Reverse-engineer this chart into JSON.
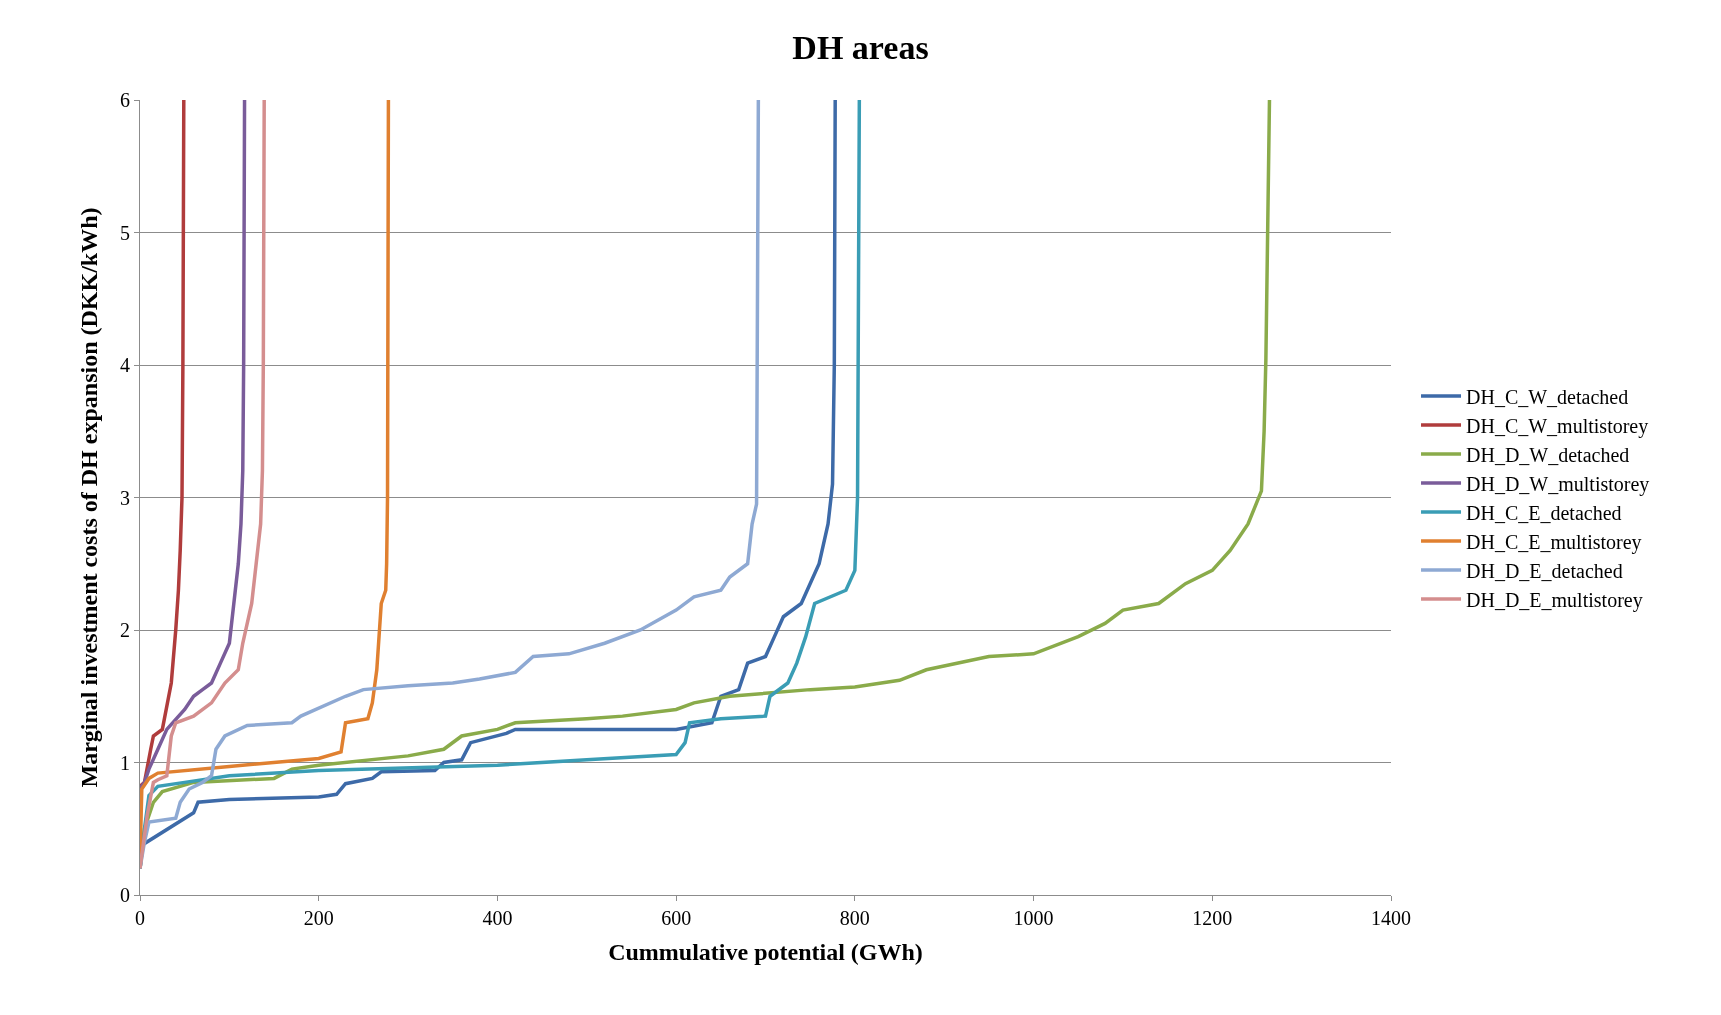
{
  "chart_data": {
    "type": "line",
    "title": "DH areas",
    "xlabel": "Cummulative potential (GWh)",
    "ylabel": "Marginal investment costs of DH expansion (DKK/kWh)",
    "xlim": [
      0,
      1400
    ],
    "xticks": [
      0,
      200,
      400,
      600,
      800,
      1000,
      1200,
      1400
    ],
    "ylim": [
      0,
      6
    ],
    "yticks": [
      0,
      1,
      2,
      3,
      4,
      5,
      6
    ],
    "grid": "y",
    "legend": "right",
    "marker": "none",
    "line_style": "solid",
    "series": [
      {
        "name": "DH_C_W_detached",
        "color": "#3d6aa8",
        "x": [
          0,
          3,
          60,
          65,
          100,
          200,
          220,
          230,
          260,
          270,
          330,
          340,
          360,
          370,
          410,
          420,
          600,
          640,
          650,
          670,
          680,
          700,
          710,
          720,
          740,
          760,
          770,
          775,
          777,
          778
        ],
        "values": [
          0.2,
          0.38,
          0.62,
          0.7,
          0.72,
          0.74,
          0.76,
          0.84,
          0.88,
          0.93,
          0.94,
          1.0,
          1.02,
          1.15,
          1.22,
          1.25,
          1.25,
          1.3,
          1.5,
          1.55,
          1.75,
          1.8,
          1.95,
          2.1,
          2.2,
          2.5,
          2.8,
          3.1,
          4,
          6
        ]
      },
      {
        "name": "DH_C_W_multistorey",
        "color": "#b03c3c",
        "x": [
          0,
          5,
          12,
          15,
          25,
          35,
          40,
          43,
          45,
          47,
          48,
          49
        ],
        "values": [
          0.82,
          0.85,
          1.1,
          1.2,
          1.25,
          1.6,
          2.0,
          2.3,
          2.6,
          3.0,
          4,
          6
        ]
      },
      {
        "name": "DH_D_W_detached",
        "color": "#8aab4a",
        "x": [
          0,
          5,
          15,
          25,
          60,
          150,
          170,
          200,
          300,
          340,
          360,
          400,
          420,
          500,
          540,
          600,
          620,
          660,
          750,
          800,
          850,
          880,
          950,
          1000,
          1050,
          1080,
          1100,
          1140,
          1170,
          1200,
          1220,
          1240,
          1255,
          1258,
          1260,
          1264
        ],
        "values": [
          0.2,
          0.5,
          0.7,
          0.78,
          0.85,
          0.88,
          0.95,
          0.98,
          1.05,
          1.1,
          1.2,
          1.25,
          1.3,
          1.33,
          1.35,
          1.4,
          1.45,
          1.5,
          1.55,
          1.57,
          1.62,
          1.7,
          1.8,
          1.82,
          1.95,
          2.05,
          2.15,
          2.2,
          2.35,
          2.45,
          2.6,
          2.8,
          3.05,
          3.5,
          4.05,
          6
        ]
      },
      {
        "name": "DH_D_W_multistorey",
        "color": "#7a5c9a",
        "x": [
          0,
          5,
          10,
          20,
          30,
          50,
          60,
          70,
          80,
          90,
          100,
          105,
          110,
          113,
          115,
          116,
          117
        ],
        "values": [
          0.8,
          0.85,
          0.95,
          1.1,
          1.25,
          1.4,
          1.5,
          1.55,
          1.6,
          1.75,
          1.9,
          2.2,
          2.5,
          2.8,
          3.2,
          4,
          6
        ]
      },
      {
        "name": "DH_C_E_detached",
        "color": "#3a9db5",
        "x": [
          0,
          5,
          10,
          20,
          50,
          100,
          200,
          400,
          500,
          600,
          610,
          615,
          650,
          700,
          705,
          725,
          735,
          745,
          755,
          790,
          800,
          803,
          805
        ],
        "values": [
          0.2,
          0.5,
          0.75,
          0.82,
          0.85,
          0.9,
          0.94,
          0.98,
          1.02,
          1.06,
          1.15,
          1.3,
          1.33,
          1.35,
          1.5,
          1.6,
          1.75,
          1.95,
          2.2,
          2.3,
          2.45,
          3.0,
          6
        ]
      },
      {
        "name": "DH_C_E_multistorey",
        "color": "#e08030",
        "x": [
          0,
          2,
          10,
          20,
          100,
          200,
          225,
          230,
          255,
          260,
          265,
          268,
          270,
          275,
          276,
          277,
          278
        ],
        "values": [
          0.25,
          0.8,
          0.88,
          0.92,
          0.97,
          1.03,
          1.08,
          1.3,
          1.33,
          1.45,
          1.7,
          2.0,
          2.2,
          2.3,
          2.5,
          3,
          6
        ]
      },
      {
        "name": "DH_D_E_detached",
        "color": "#8ea9d3",
        "x": [
          0,
          5,
          10,
          40,
          45,
          55,
          70,
          80,
          85,
          95,
          120,
          170,
          180,
          230,
          250,
          300,
          350,
          380,
          420,
          440,
          480,
          520,
          560,
          600,
          620,
          650,
          660,
          680,
          685,
          690,
          692
        ],
        "values": [
          0.2,
          0.4,
          0.55,
          0.58,
          0.7,
          0.8,
          0.85,
          0.9,
          1.1,
          1.2,
          1.28,
          1.3,
          1.35,
          1.5,
          1.55,
          1.58,
          1.6,
          1.63,
          1.68,
          1.8,
          1.82,
          1.9,
          2.0,
          2.15,
          2.25,
          2.3,
          2.4,
          2.5,
          2.8,
          2.95,
          6
        ]
      },
      {
        "name": "DH_D_E_multistorey",
        "color": "#d48e8e",
        "x": [
          0,
          8,
          15,
          20,
          30,
          35,
          40,
          60,
          80,
          95,
          110,
          115,
          125,
          130,
          135,
          137,
          138,
          139
        ],
        "values": [
          0.2,
          0.6,
          0.85,
          0.87,
          0.9,
          1.2,
          1.3,
          1.35,
          1.45,
          1.6,
          1.7,
          1.9,
          2.2,
          2.5,
          2.8,
          3.2,
          4,
          6
        ]
      }
    ]
  }
}
